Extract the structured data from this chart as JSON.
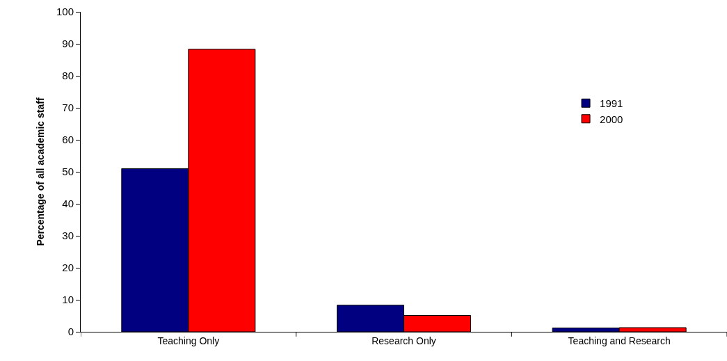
{
  "chart_data": {
    "type": "bar",
    "ylabel": "Percentage of all academic staff",
    "categories": [
      "Teaching Only",
      "Research Only",
      "Teaching and Research"
    ],
    "series": [
      {
        "name": "1991",
        "color": "#000080",
        "values": [
          51,
          8.3,
          1.2
        ]
      },
      {
        "name": "2000",
        "color": "#ff0000",
        "values": [
          88.3,
          5.1,
          1.3
        ]
      }
    ],
    "ylim": [
      0,
      100
    ],
    "yticks": [
      0,
      10,
      20,
      30,
      40,
      50,
      60,
      70,
      80,
      90,
      100
    ],
    "grid": false,
    "legend": "top right"
  }
}
